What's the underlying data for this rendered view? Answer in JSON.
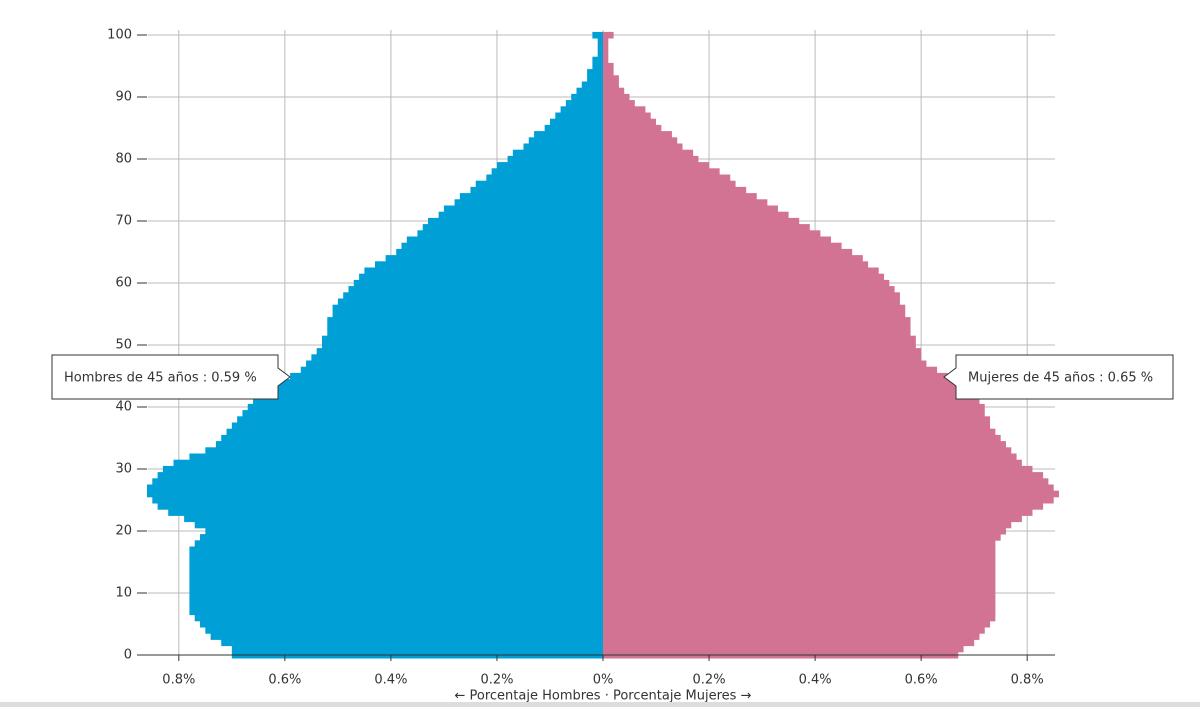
{
  "chart_data": {
    "type": "pyramid",
    "x_label": "← Porcentaje Hombres  ·  Porcentaje Mujeres →",
    "annotations": [
      "Hombres de 45 años : 0.59 %",
      "Mujeres de 45 años : 0.65 %"
    ],
    "y": [
      0,
      1,
      2,
      3,
      4,
      5,
      6,
      7,
      8,
      9,
      10,
      11,
      12,
      13,
      14,
      15,
      16,
      17,
      18,
      19,
      20,
      21,
      22,
      23,
      24,
      25,
      26,
      27,
      28,
      29,
      30,
      31,
      32,
      33,
      34,
      35,
      36,
      37,
      38,
      39,
      40,
      41,
      42,
      43,
      44,
      45,
      46,
      47,
      48,
      49,
      50,
      51,
      52,
      53,
      54,
      55,
      56,
      57,
      58,
      59,
      60,
      61,
      62,
      63,
      64,
      65,
      66,
      67,
      68,
      69,
      70,
      71,
      72,
      73,
      74,
      75,
      76,
      77,
      78,
      79,
      80,
      81,
      82,
      83,
      84,
      85,
      86,
      87,
      88,
      89,
      90,
      91,
      92,
      93,
      94,
      95,
      96,
      97,
      98,
      99,
      100
    ],
    "series": [
      {
        "side": "left",
        "color": "#009fd6",
        "values": [
          0.7,
          0.7,
          0.72,
          0.74,
          0.75,
          0.76,
          0.77,
          0.78,
          0.78,
          0.78,
          0.78,
          0.78,
          0.78,
          0.78,
          0.78,
          0.78,
          0.78,
          0.78,
          0.77,
          0.76,
          0.75,
          0.77,
          0.79,
          0.82,
          0.84,
          0.85,
          0.86,
          0.86,
          0.85,
          0.84,
          0.83,
          0.81,
          0.78,
          0.75,
          0.73,
          0.72,
          0.71,
          0.7,
          0.69,
          0.68,
          0.67,
          0.66,
          0.65,
          0.63,
          0.61,
          0.59,
          0.57,
          0.56,
          0.55,
          0.54,
          0.53,
          0.53,
          0.52,
          0.52,
          0.52,
          0.51,
          0.51,
          0.5,
          0.49,
          0.48,
          0.47,
          0.46,
          0.45,
          0.43,
          0.41,
          0.39,
          0.38,
          0.37,
          0.35,
          0.34,
          0.33,
          0.31,
          0.3,
          0.28,
          0.27,
          0.25,
          0.24,
          0.22,
          0.21,
          0.2,
          0.18,
          0.17,
          0.15,
          0.14,
          0.13,
          0.11,
          0.1,
          0.09,
          0.08,
          0.07,
          0.06,
          0.05,
          0.04,
          0.03,
          0.03,
          0.02,
          0.02,
          0.01,
          0.01,
          0.01,
          0.02
        ]
      },
      {
        "side": "right",
        "color": "#d27393",
        "values": [
          0.67,
          0.68,
          0.7,
          0.71,
          0.72,
          0.73,
          0.74,
          0.74,
          0.74,
          0.74,
          0.74,
          0.74,
          0.74,
          0.74,
          0.74,
          0.74,
          0.74,
          0.74,
          0.74,
          0.75,
          0.76,
          0.77,
          0.79,
          0.81,
          0.83,
          0.85,
          0.86,
          0.85,
          0.84,
          0.83,
          0.81,
          0.79,
          0.78,
          0.77,
          0.76,
          0.75,
          0.74,
          0.73,
          0.73,
          0.72,
          0.72,
          0.71,
          0.7,
          0.69,
          0.67,
          0.65,
          0.63,
          0.61,
          0.6,
          0.6,
          0.59,
          0.59,
          0.58,
          0.58,
          0.58,
          0.57,
          0.57,
          0.56,
          0.56,
          0.55,
          0.54,
          0.53,
          0.52,
          0.5,
          0.49,
          0.47,
          0.45,
          0.43,
          0.41,
          0.39,
          0.37,
          0.35,
          0.33,
          0.31,
          0.29,
          0.27,
          0.25,
          0.24,
          0.22,
          0.2,
          0.18,
          0.17,
          0.15,
          0.14,
          0.13,
          0.11,
          0.1,
          0.09,
          0.08,
          0.06,
          0.05,
          0.04,
          0.03,
          0.03,
          0.02,
          0.02,
          0.01,
          0.01,
          0.01,
          0.01,
          0.02
        ]
      }
    ],
    "xlim": [
      -0.86,
      0.86
    ],
    "xticks": [
      {
        "value": -0.8,
        "label": "0.8%"
      },
      {
        "value": -0.6,
        "label": "0.6%"
      },
      {
        "value": -0.4,
        "label": "0.4%"
      },
      {
        "value": -0.2,
        "label": "0.2%"
      },
      {
        "value": 0,
        "label": "0%"
      },
      {
        "value": 0.2,
        "label": "0.2%"
      },
      {
        "value": 0.4,
        "label": "0.4%"
      },
      {
        "value": 0.6,
        "label": "0.6%"
      },
      {
        "value": 0.8,
        "label": "0.8%"
      }
    ],
    "ylim": [
      0,
      100
    ],
    "yticks": [
      0,
      10,
      20,
      30,
      40,
      50,
      60,
      70,
      80,
      90,
      100
    ],
    "grid": true
  }
}
